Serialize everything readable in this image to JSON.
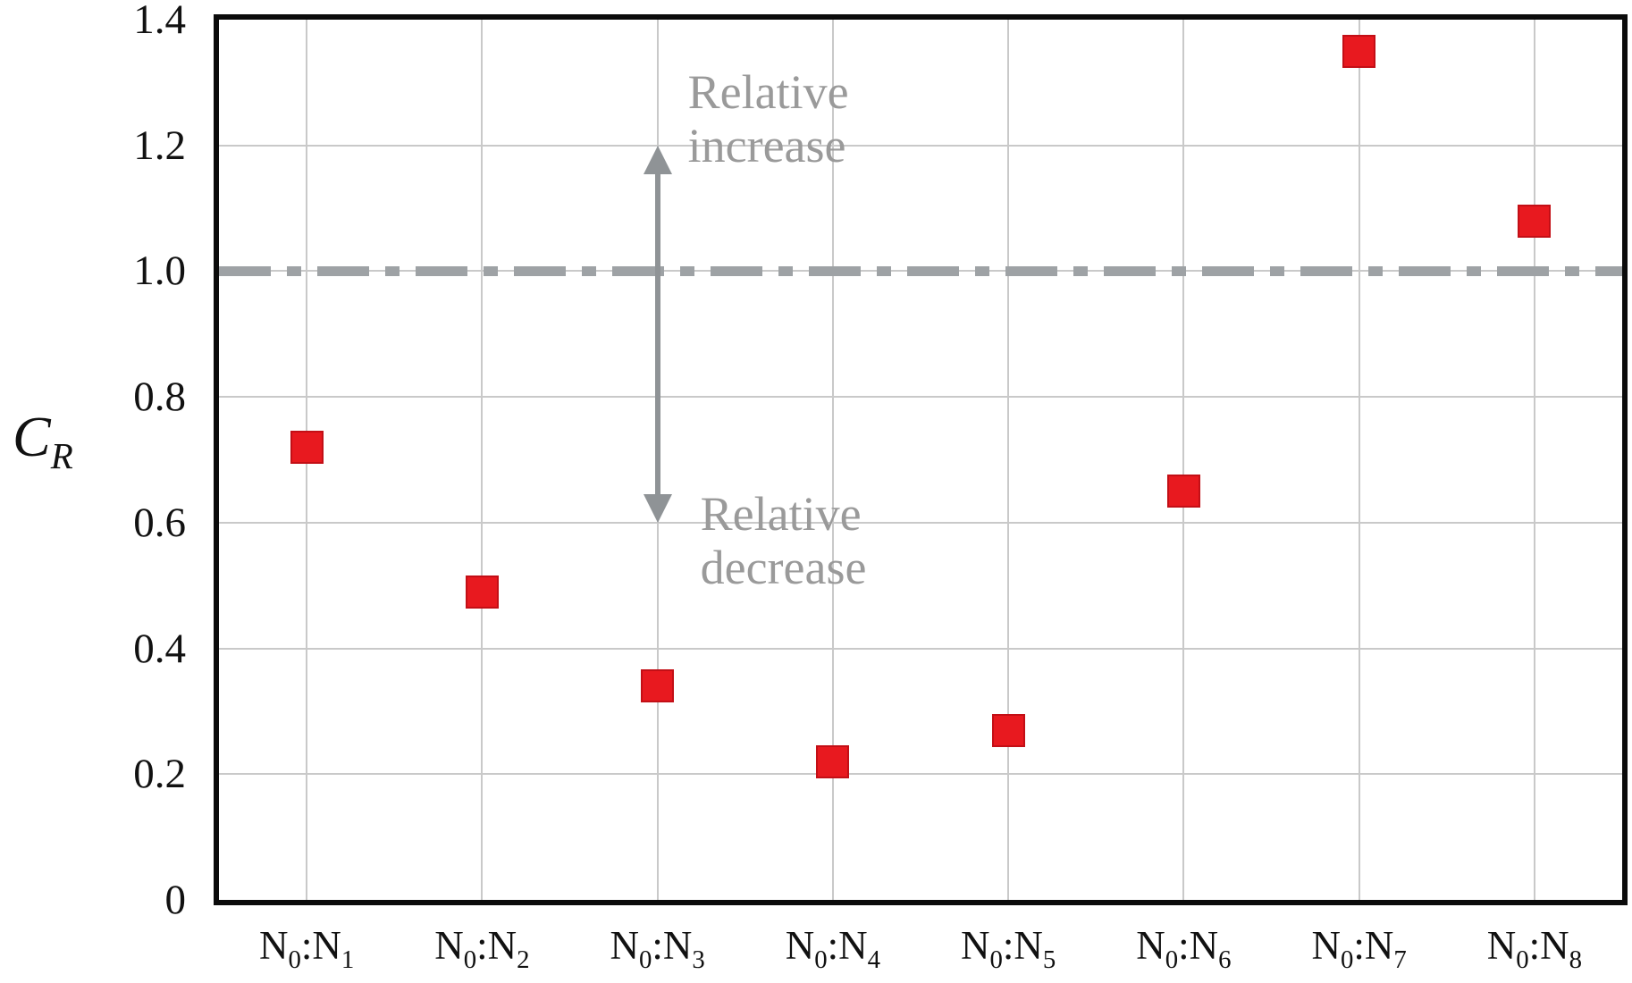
{
  "chart_data": {
    "type": "scatter",
    "title": "",
    "ylabel": "C_R",
    "xlabel": "",
    "categories": [
      "N_0:N_1",
      "N_0:N_2",
      "N_0:N_3",
      "N_0:N_4",
      "N_0:N_5",
      "N_0:N_6",
      "N_0:N_7",
      "N_0:N_8"
    ],
    "values": [
      0.72,
      0.49,
      0.34,
      0.22,
      0.27,
      0.65,
      1.35,
      1.08
    ],
    "ylim": [
      0,
      1.4
    ],
    "ytick_labels": [
      "0",
      "0.2",
      "0.4",
      "0.6",
      "0.8",
      "1.0",
      "1.2",
      "1.4"
    ],
    "ytick_values": [
      0,
      0.2,
      0.4,
      0.6,
      0.8,
      1.0,
      1.2,
      1.4
    ],
    "grid": true,
    "legend": "none",
    "marker": {
      "shape": "square",
      "color": "#e8191f"
    },
    "reference_line": {
      "y": 1.0,
      "style": "dash-dot",
      "color": "#9ea2a5"
    },
    "arrow": {
      "category_index": 2,
      "y_from": 0.6,
      "y_to": 1.2,
      "double_headed": true,
      "color": "#8f9396"
    },
    "annotations": [
      {
        "id": "relative-increase",
        "lines": [
          "Relative",
          "increase"
        ],
        "color": "#9a9a9a"
      },
      {
        "id": "relative-decrease",
        "lines": [
          "Relative",
          "decrease"
        ],
        "color": "#9a9a9a"
      }
    ]
  }
}
